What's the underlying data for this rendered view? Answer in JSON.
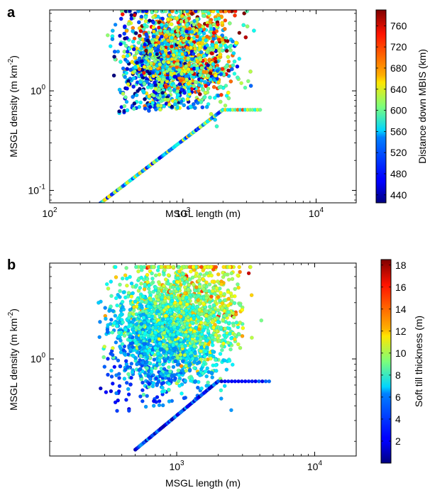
{
  "chart_data": [
    {
      "panel_label": "a",
      "type": "scatter",
      "xlabel": "MSGL length (m)",
      "ylabel": "MSGL density (m km",
      "ylabel_sup": "-2",
      "ylabel_tail": ")",
      "xscale": "log",
      "yscale": "log",
      "xlim": [
        100,
        20000
      ],
      "ylim": [
        0.075,
        6.5
      ],
      "x_ticks": [
        {
          "value": 100,
          "base": "10",
          "exp": "2"
        },
        {
          "value": 1000,
          "base": "10",
          "exp": "3"
        },
        {
          "value": 10000,
          "base": "10",
          "exp": "4"
        }
      ],
      "y_ticks": [
        {
          "value": 0.1,
          "base": "10",
          "exp": "-1"
        },
        {
          "value": 1,
          "base": "10",
          "exp": "0"
        }
      ],
      "colorbar": {
        "label": "Distance down MBIS (km)",
        "min": 425,
        "max": 790,
        "ticks": [
          "440",
          "480",
          "520",
          "560",
          "600",
          "640",
          "680",
          "720",
          "760"
        ],
        "tick_values": [
          440,
          480,
          520,
          560,
          600,
          640,
          680,
          720,
          760
        ]
      },
      "colormap": "jet",
      "point_count_estimate": 3000,
      "distribution": "Dense cloud from ~200 m to ~20000 m length and ~0.3 to ~6 m km^-2 density; higher distance values (red) concentrate at longer lengths and higher densities; a diagonal line of points rises from ~(230 m, 0.07) to ~(2000 m, 0.65) then flattens to ~3000 m."
    },
    {
      "panel_label": "b",
      "type": "scatter",
      "xlabel": "MSGL length (m)",
      "ylabel": "MSGL density (m km",
      "ylabel_sup": "-2",
      "ylabel_tail": ")",
      "xscale": "log",
      "yscale": "log",
      "xlim": [
        120,
        20000
      ],
      "ylim": [
        0.15,
        6.5
      ],
      "x_ticks": [
        {
          "value": 1000,
          "base": "10",
          "exp": "3"
        },
        {
          "value": 10000,
          "base": "10",
          "exp": "4"
        }
      ],
      "y_ticks": [
        {
          "value": 1,
          "base": "10",
          "exp": "0"
        }
      ],
      "colorbar": {
        "label": "Soft till thickness (m)",
        "min": 0,
        "max": 18.5,
        "ticks": [
          "2",
          "4",
          "6",
          "8",
          "10",
          "12",
          "14",
          "16",
          "18"
        ],
        "tick_values": [
          2,
          4,
          6,
          8,
          10,
          12,
          14,
          16,
          18
        ]
      },
      "colormap": "jet",
      "point_count_estimate": 2200,
      "distribution": "Cloud from ~150 m to ~20000 m length and ~0.15 to ~6 m km^-2 density; low values (blue) dominate at short lengths, higher values (green to red) at longer lengths and higher densities; diagonal line of points from ~(500 m, 0.17) to ~(2000 m, 0.65) then flat to ~4500 m."
    }
  ]
}
